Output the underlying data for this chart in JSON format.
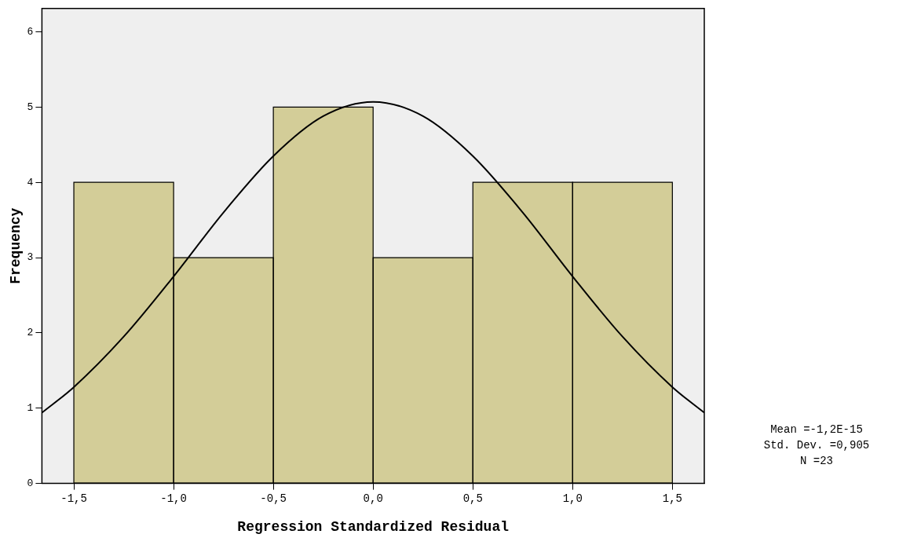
{
  "chart_data": {
    "type": "histogram",
    "xlabel": "Regression Standardized Residual",
    "ylabel": "Frequency",
    "bins": [
      -1.5,
      -1,
      -0.5,
      0,
      0.5,
      1,
      1.5
    ],
    "values": [
      4,
      3,
      5,
      3,
      4,
      4
    ],
    "color": "#d3cd98",
    "series": [
      {
        "type": "line",
        "color": "#000000",
        "x": [
          -1.66,
          -1.5,
          -1.25,
          -1,
          -0.75,
          -0.5,
          -0.25,
          0,
          0.25,
          0.5,
          0.75,
          1,
          1.25,
          1.5,
          1.66
        ],
        "values": [
          0.94,
          1.28,
          1.95,
          2.75,
          3.6,
          4.35,
          4.88,
          5.07,
          4.88,
          4.35,
          3.6,
          2.75,
          1.95,
          1.28,
          0.94
        ]
      }
    ],
    "xlim": [
      -1.66,
      1.66
    ],
    "xticks": [
      {
        "value": -1.5,
        "label": "-1,5"
      },
      {
        "value": -1,
        "label": "-1,0"
      },
      {
        "value": -0.5,
        "label": "-0,5"
      },
      {
        "value": 0,
        "label": "0,0"
      },
      {
        "value": 0.5,
        "label": "0,5"
      },
      {
        "value": 1,
        "label": "1,0"
      },
      {
        "value": 1.5,
        "label": "1,5"
      }
    ],
    "ylim": [
      0,
      6.31
    ],
    "yticks": [
      0,
      1,
      2,
      3,
      4,
      5,
      6
    ],
    "legend": false,
    "marker": "none",
    "line_style": "solid",
    "annotations": [
      "Mean =-1,2E-15",
      "Std. Dev. =0,905",
      "N =23"
    ]
  }
}
